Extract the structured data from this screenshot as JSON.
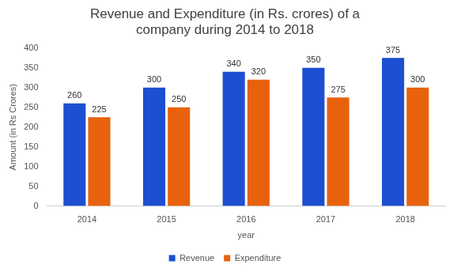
{
  "chart_data": {
    "type": "bar",
    "title": [
      "Revenue and Expenditure (in Rs. crores) of a",
      "company during 2014 to 2018"
    ],
    "x_label": "year",
    "y_label": "Amount (in Rs Crores)",
    "categories": [
      "2014",
      "2015",
      "2016",
      "2017",
      "2018"
    ],
    "series": [
      {
        "name": "Revenue",
        "color": "#1c4fd1",
        "values": [
          260,
          300,
          340,
          350,
          375
        ]
      },
      {
        "name": "Expenditure",
        "color": "#e8620e",
        "values": [
          225,
          250,
          320,
          275,
          300
        ]
      }
    ],
    "ylim": [
      0,
      400
    ],
    "yticks": [
      0,
      50,
      100,
      150,
      200,
      250,
      300,
      350,
      400
    ],
    "grid": false,
    "legend": "bottom",
    "data_labels": true
  }
}
